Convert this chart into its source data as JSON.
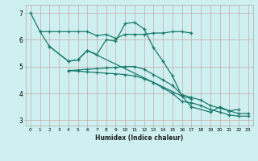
{
  "xlabel": "Humidex (Indice chaleur)",
  "background_color": "#cff0f0",
  "grid_color": "#c8a8a8",
  "line_color": "#1a7a6e",
  "xlim": [
    -0.5,
    23.5
  ],
  "ylim": [
    2.8,
    7.3
  ],
  "yticks": [
    3,
    4,
    5,
    6,
    7
  ],
  "xticks": [
    0,
    1,
    2,
    3,
    4,
    5,
    6,
    7,
    8,
    9,
    10,
    11,
    12,
    13,
    14,
    15,
    16,
    17,
    18,
    19,
    20,
    21,
    22,
    23
  ],
  "line1_x": [
    0,
    1,
    2,
    3,
    4,
    5,
    6,
    7,
    8,
    9,
    10,
    11,
    12,
    13,
    14,
    15,
    16,
    17
  ],
  "line1_y": [
    7.0,
    6.3,
    6.3,
    6.3,
    6.3,
    6.3,
    6.3,
    6.15,
    6.2,
    6.05,
    6.2,
    6.2,
    6.2,
    6.25,
    6.25,
    6.3,
    6.3,
    6.25
  ],
  "line2_x": [
    2,
    4,
    5,
    6,
    7,
    8,
    9,
    10,
    11,
    12,
    13,
    14,
    15,
    16,
    17,
    19,
    20,
    21,
    22
  ],
  "line2_y": [
    5.75,
    5.2,
    5.25,
    5.6,
    5.45,
    6.0,
    5.95,
    6.6,
    6.65,
    6.4,
    5.7,
    5.2,
    4.65,
    3.9,
    3.5,
    3.3,
    3.5,
    3.35,
    3.4
  ],
  "line3_x": [
    1,
    2,
    4,
    5,
    6,
    16,
    17
  ],
  "line3_y": [
    6.3,
    5.75,
    5.2,
    5.25,
    5.6,
    3.9,
    3.8
  ],
  "line4_x": [
    4,
    5,
    6,
    7,
    8,
    9,
    10,
    11,
    12,
    13,
    14,
    15,
    16,
    17,
    18,
    19,
    20,
    21,
    22,
    23
  ],
  "line4_y": [
    4.85,
    4.87,
    4.9,
    4.92,
    4.95,
    4.97,
    5.0,
    5.0,
    4.9,
    4.7,
    4.5,
    4.3,
    3.95,
    3.85,
    3.75,
    3.55,
    3.45,
    3.35,
    3.25,
    3.25
  ],
  "line5_x": [
    4,
    5,
    6,
    7,
    8,
    9,
    10,
    11,
    12,
    13,
    14,
    15,
    16,
    17,
    18,
    19,
    20,
    21,
    22,
    23
  ],
  "line5_y": [
    4.85,
    4.83,
    4.8,
    4.78,
    4.75,
    4.73,
    4.7,
    4.65,
    4.55,
    4.4,
    4.2,
    4.0,
    3.7,
    3.65,
    3.55,
    3.4,
    3.3,
    3.2,
    3.15,
    3.15
  ]
}
